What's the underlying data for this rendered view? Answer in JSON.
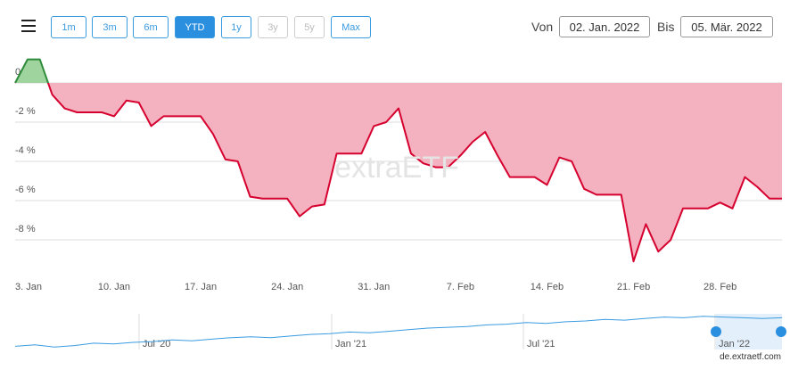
{
  "toolbar": {
    "ranges": [
      {
        "label": "1m",
        "state": "enabled"
      },
      {
        "label": "3m",
        "state": "enabled"
      },
      {
        "label": "6m",
        "state": "enabled"
      },
      {
        "label": "YTD",
        "state": "active"
      },
      {
        "label": "1y",
        "state": "enabled"
      },
      {
        "label": "3y",
        "state": "disabled"
      },
      {
        "label": "5y",
        "state": "disabled"
      },
      {
        "label": "Max",
        "state": "enabled"
      }
    ],
    "from_label": "Von",
    "from": "02. Jan. 2022",
    "to_label": "Bis",
    "to": "05. Mär. 2022"
  },
  "chart_data": {
    "type": "area",
    "x": [
      2,
      3,
      4,
      5,
      6,
      7,
      8,
      9,
      10,
      11,
      12,
      13,
      14,
      15,
      16,
      17,
      18,
      19,
      20,
      21,
      22,
      23,
      24,
      25,
      26,
      27,
      28,
      29,
      30,
      31,
      32,
      33,
      34,
      35,
      36,
      37,
      38,
      39,
      40,
      41,
      42,
      43,
      44,
      45,
      46,
      47,
      48,
      49,
      50,
      51,
      52,
      53,
      54,
      55,
      56,
      57,
      58,
      59,
      60,
      61,
      62,
      63,
      64
    ],
    "values": [
      0,
      1.2,
      1.2,
      -0.6,
      -1.3,
      -1.5,
      -1.5,
      -1.5,
      -1.7,
      -0.9,
      -1.0,
      -2.2,
      -1.7,
      -1.7,
      -1.7,
      -1.7,
      -2.6,
      -3.9,
      -4.0,
      -5.8,
      -5.9,
      -5.9,
      -5.9,
      -6.8,
      -6.3,
      -6.2,
      -3.6,
      -3.6,
      -3.6,
      -2.2,
      -2.0,
      -1.3,
      -3.6,
      -4.1,
      -4.3,
      -4.3,
      -3.7,
      -3.0,
      -2.5,
      -3.7,
      -4.8,
      -4.8,
      -4.8,
      -5.2,
      -3.8,
      -4.0,
      -5.4,
      -5.7,
      -5.7,
      -5.7,
      -9.1,
      -7.2,
      -8.6,
      -8.0,
      -6.4,
      -6.4,
      -6.4,
      -6.1,
      -6.4,
      -4.8,
      -5.3,
      -5.9,
      -5.9
    ],
    "xlim": [
      2,
      64
    ],
    "xticks": [
      {
        "value": 3,
        "label": "3. Jan"
      },
      {
        "value": 10,
        "label": "10. Jan"
      },
      {
        "value": 17,
        "label": "17. Jan"
      },
      {
        "value": 24,
        "label": "24. Jan"
      },
      {
        "value": 31,
        "label": "31. Jan"
      },
      {
        "value": 38,
        "label": "7. Feb"
      },
      {
        "value": 45,
        "label": "14. Feb"
      },
      {
        "value": 52,
        "label": "21. Feb"
      },
      {
        "value": 59,
        "label": "28. Feb"
      }
    ],
    "ylim": [
      -9.5,
      1.5
    ],
    "yticks": [
      {
        "value": 0,
        "label": "0 %"
      },
      {
        "value": -2,
        "label": "-2 %"
      },
      {
        "value": -4,
        "label": "-4 %"
      },
      {
        "value": -6,
        "label": "-6 %"
      },
      {
        "value": -8,
        "label": "-8 %"
      }
    ],
    "grid": true,
    "positive_color": "#2e8b3a",
    "positive_fill": "#9fd49f",
    "negative_color": "#d6002f",
    "negative_fill": "#f4b1bf"
  },
  "watermark": "extraETF",
  "navigator": {
    "values": [
      84,
      86,
      83,
      85,
      88,
      87,
      89,
      90,
      92,
      91,
      93,
      95,
      96,
      95,
      97,
      99,
      100,
      102,
      101,
      103,
      105,
      107,
      108,
      109,
      111,
      112,
      114,
      113,
      115,
      116,
      118,
      117,
      119,
      121,
      120,
      122,
      121,
      120,
      119,
      120
    ],
    "ylim": [
      80,
      125
    ],
    "color": "#3a9be0",
    "ticks": [
      {
        "value": 6.3,
        "label": "Jul '20"
      },
      {
        "value": 16.1,
        "label": "Jan '21"
      },
      {
        "value": 25.85,
        "label": "Jul '21"
      },
      {
        "value": 35.6,
        "label": "Jan '22"
      }
    ]
  },
  "credit": "de.extraetf.com"
}
